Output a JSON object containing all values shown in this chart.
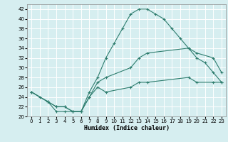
{
  "xlabel": "Humidex (Indice chaleur)",
  "background_color": "#d6eef0",
  "grid_color": "#ffffff",
  "line_color": "#2e7d6e",
  "xlim": [
    -0.5,
    23.5
  ],
  "ylim": [
    20,
    43
  ],
  "yticks": [
    20,
    22,
    24,
    26,
    28,
    30,
    32,
    34,
    36,
    38,
    40,
    42
  ],
  "xticks": [
    0,
    1,
    2,
    3,
    4,
    5,
    6,
    7,
    8,
    9,
    10,
    11,
    12,
    13,
    14,
    15,
    16,
    17,
    18,
    19,
    20,
    21,
    22,
    23
  ],
  "line1_x": [
    0,
    1,
    2,
    3,
    4,
    5,
    6,
    7,
    8,
    9,
    10,
    11,
    12,
    13,
    14,
    15,
    16,
    17,
    18,
    19,
    20,
    21,
    22,
    23
  ],
  "line1_y": [
    25,
    24,
    23,
    21,
    21,
    21,
    21,
    25,
    28,
    32,
    35,
    38,
    41,
    42,
    42,
    41,
    40,
    38,
    36,
    34,
    32,
    31,
    29,
    27
  ],
  "line2_x": [
    0,
    2,
    3,
    4,
    5,
    6,
    7,
    8,
    9,
    12,
    13,
    14,
    19,
    20,
    22,
    23
  ],
  "line2_y": [
    25,
    23,
    22,
    22,
    21,
    21,
    24,
    27,
    28,
    30,
    32,
    33,
    34,
    33,
    32,
    29
  ],
  "line3_x": [
    0,
    2,
    3,
    4,
    5,
    6,
    7,
    8,
    9,
    12,
    13,
    14,
    19,
    20,
    22,
    23
  ],
  "line3_y": [
    25,
    23,
    22,
    22,
    21,
    21,
    24,
    26,
    25,
    26,
    27,
    27,
    28,
    27,
    27,
    27
  ]
}
